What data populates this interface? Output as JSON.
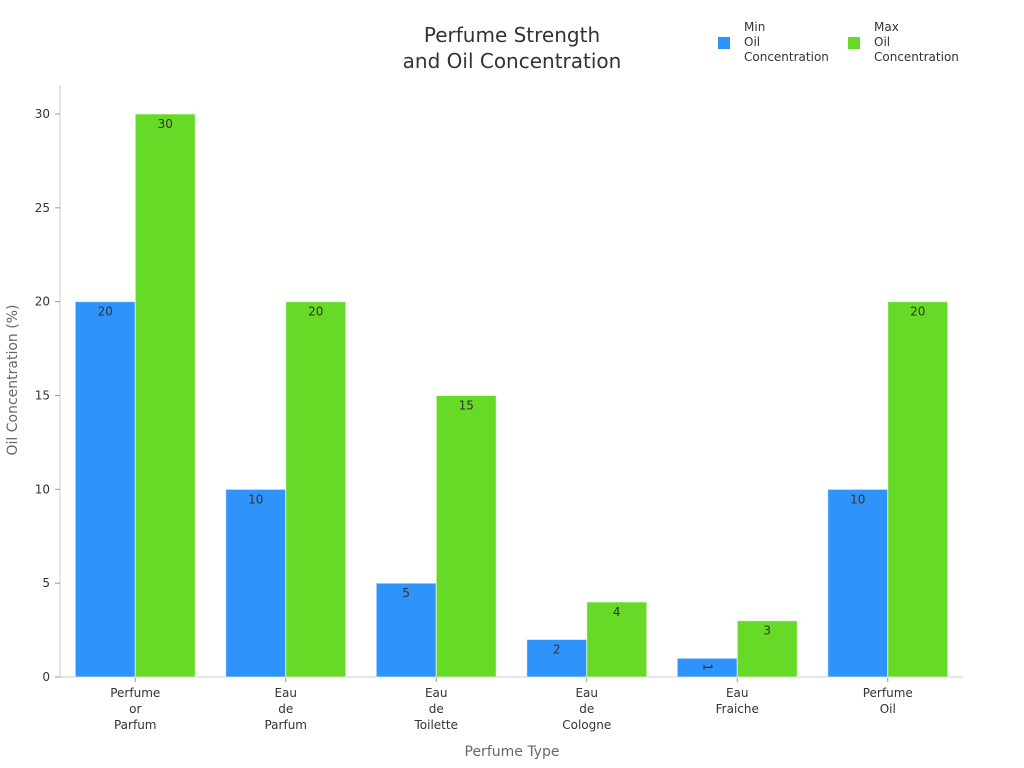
{
  "chart_data": {
    "type": "bar",
    "title": [
      "Perfume Strength",
      "and Oil Concentration"
    ],
    "xlabel": "Perfume Type",
    "ylabel": "Oil Concentration (%)",
    "ylim": [
      0,
      31.5
    ],
    "yticks": [
      0,
      5,
      10,
      15,
      20,
      25,
      30
    ],
    "grid": false,
    "legend_position": "top-right",
    "categories": [
      [
        "Perfume",
        "or",
        "Parfum"
      ],
      [
        "Eau",
        "de",
        "Parfum"
      ],
      [
        "Eau",
        "de",
        "Toilette"
      ],
      [
        "Eau",
        "de",
        "Cologne"
      ],
      [
        "Eau",
        "Fraiche"
      ],
      [
        "Perfume",
        "Oil"
      ]
    ],
    "series": [
      {
        "name": [
          "Min",
          "Oil",
          "Concentration"
        ],
        "color": "#2E93FA",
        "values": [
          20,
          10,
          5,
          2,
          1,
          10
        ]
      },
      {
        "name": [
          "Max",
          "Oil",
          "Concentration"
        ],
        "color": "#66DA26",
        "values": [
          30,
          20,
          15,
          4,
          3,
          20
        ]
      }
    ]
  }
}
